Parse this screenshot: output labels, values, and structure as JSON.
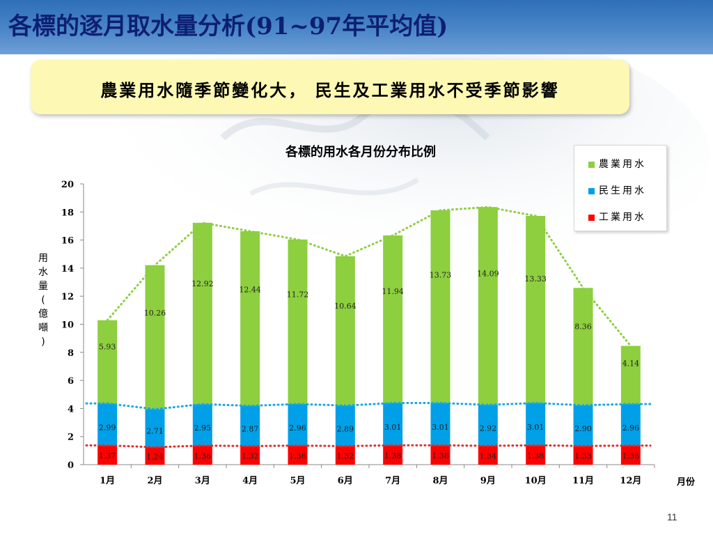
{
  "slide": {
    "title": "各標的逐月取水量分析(91~97年平均值)",
    "banner": "農業用水隨季節變化大， 民生及工業用水不受季節影響",
    "page_number": "11"
  },
  "chart_data": {
    "type": "bar",
    "stacked": true,
    "title": "各標的用水各月份分布比例",
    "ylabel": "用水量(億噸)",
    "xlabel": "月份",
    "ylim": [
      0,
      20
    ],
    "yticks": [
      0,
      2,
      4,
      6,
      8,
      10,
      12,
      14,
      16,
      18,
      20
    ],
    "categories": [
      "1月",
      "2月",
      "3月",
      "4月",
      "5月",
      "6月",
      "7月",
      "8月",
      "9月",
      "10月",
      "11月",
      "12月"
    ],
    "series": [
      {
        "name": "工業用水",
        "color": "#ff0000",
        "values": [
          1.37,
          1.24,
          1.36,
          1.32,
          1.36,
          1.32,
          1.38,
          1.38,
          1.34,
          1.38,
          1.33,
          1.36
        ],
        "labels": [
          "1.37",
          "1.24",
          "1.36",
          "1.32",
          "1.36",
          "1.32",
          "1.38",
          "1.38",
          "1.34",
          "1.38",
          "1.33",
          "1.36"
        ]
      },
      {
        "name": "民生用水",
        "color": "#00a0e8",
        "values": [
          2.99,
          2.71,
          2.95,
          2.87,
          2.96,
          2.89,
          3.01,
          3.01,
          2.92,
          3.01,
          2.9,
          2.96
        ],
        "labels": [
          "2.99",
          "2.71",
          "2.95",
          "2.87",
          "2.96",
          "2.89",
          "3.01",
          "3.01",
          "2.92",
          "3.01",
          "2.90",
          "2.96"
        ]
      },
      {
        "name": "農業用水",
        "color": "#8dcf3f",
        "values": [
          5.93,
          10.26,
          12.92,
          12.44,
          11.72,
          10.64,
          11.94,
          13.73,
          14.09,
          13.33,
          8.36,
          4.14
        ],
        "labels": [
          "5.93",
          "10.26",
          "12.92",
          "12.44",
          "11.72",
          "10.64",
          "11.94",
          "13.73",
          "14.09",
          "13.33",
          "8.36",
          "4.14"
        ]
      }
    ],
    "trend_lines": "dotted",
    "legend_position": "top-right"
  }
}
